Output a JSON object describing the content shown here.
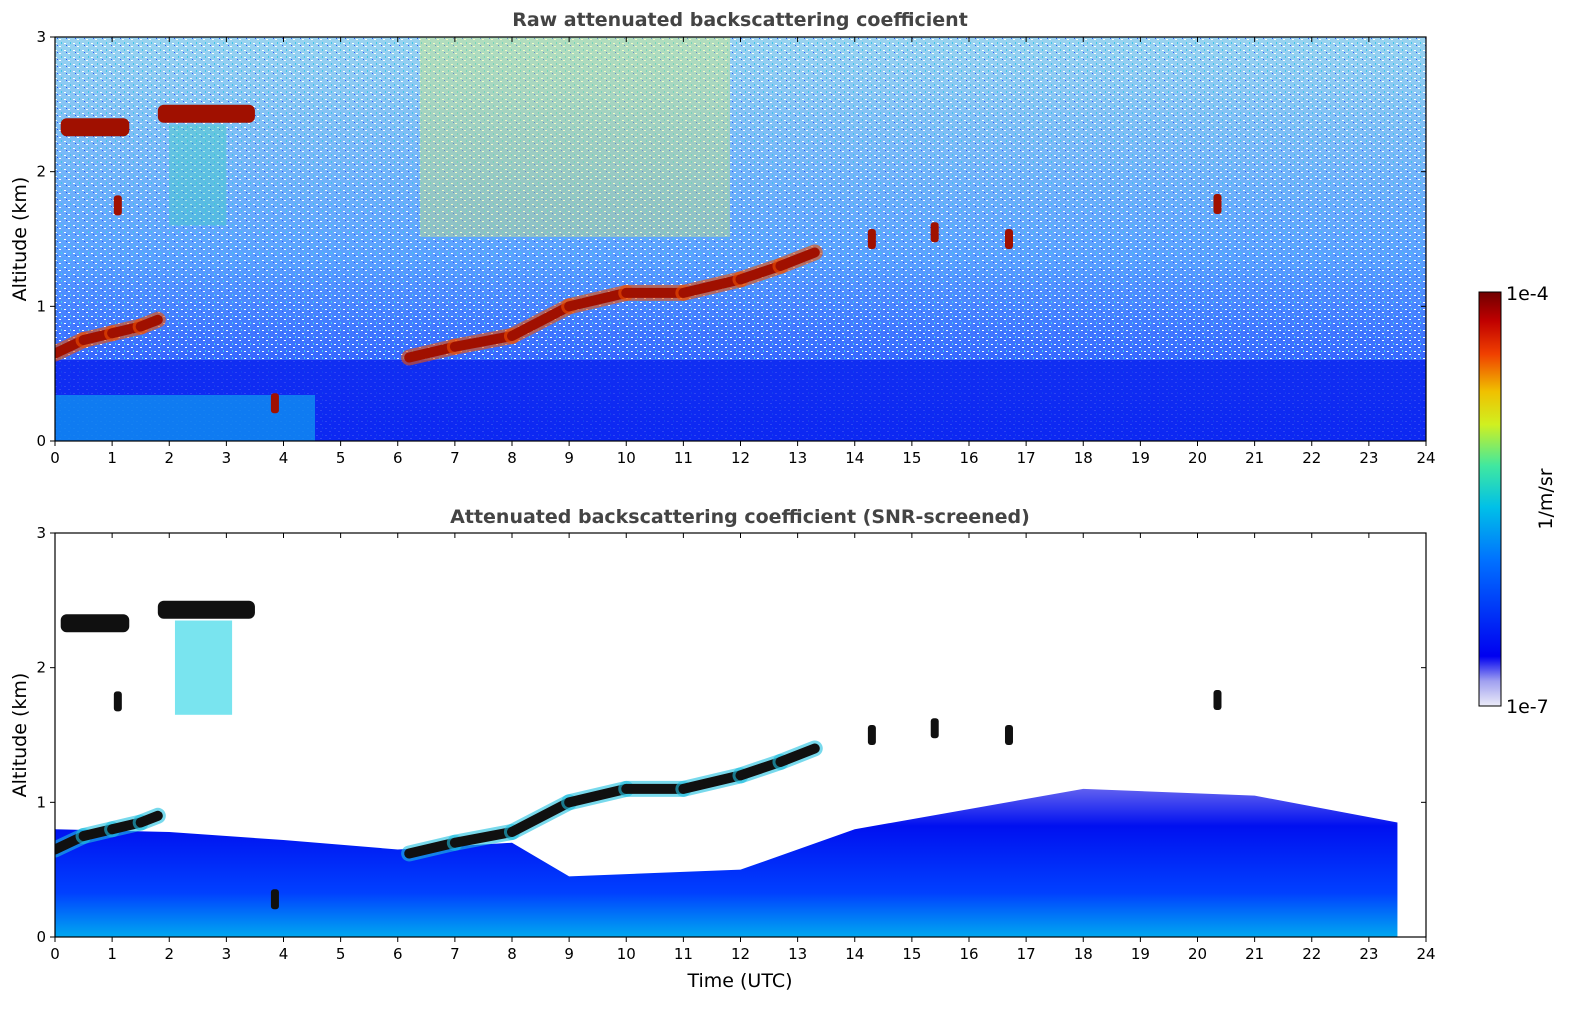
{
  "chart_data": [
    {
      "type": "heatmap",
      "title": "Raw attenuated backscattering coefficient",
      "xlabel": "",
      "ylabel": "Altitude (km)",
      "xlim": [
        0,
        24
      ],
      "ylim": [
        0,
        3
      ],
      "x_ticks": [
        "0",
        "1",
        "2",
        "3",
        "4",
        "5",
        "6",
        "7",
        "8",
        "9",
        "10",
        "11",
        "12",
        "13",
        "14",
        "15",
        "16",
        "17",
        "18",
        "19",
        "20",
        "21",
        "22",
        "23",
        "24"
      ],
      "y_ticks": [
        "0",
        "1",
        "2",
        "3"
      ],
      "cloud_layer": [
        {
          "time": 0.0,
          "altitude_km": 0.65
        },
        {
          "time": 0.5,
          "altitude_km": 0.75
        },
        {
          "time": 1.0,
          "altitude_km": 0.8
        },
        {
          "time": 1.5,
          "altitude_km": 0.85
        },
        {
          "time": 1.8,
          "altitude_km": 0.9
        },
        {
          "time": 6.2,
          "altitude_km": 0.62
        },
        {
          "time": 7.0,
          "altitude_km": 0.7
        },
        {
          "time": 8.0,
          "altitude_km": 0.78
        },
        {
          "time": 9.0,
          "altitude_km": 1.0
        },
        {
          "time": 10.0,
          "altitude_km": 1.1
        },
        {
          "time": 11.0,
          "altitude_km": 1.1
        },
        {
          "time": 12.0,
          "altitude_km": 1.2
        },
        {
          "time": 12.7,
          "altitude_km": 1.3
        },
        {
          "time": 13.3,
          "altitude_km": 1.4
        }
      ],
      "upper_cloud": [
        {
          "t_start": 0.1,
          "t_end": 1.3,
          "altitude_km": 2.33
        },
        {
          "t_start": 1.8,
          "t_end": 3.5,
          "altitude_km": 2.43
        }
      ],
      "scattered_cells": [
        {
          "time": 1.1,
          "altitude_km": 1.75
        },
        {
          "time": 3.85,
          "altitude_km": 0.28
        },
        {
          "time": 14.3,
          "altitude_km": 1.5
        },
        {
          "time": 15.4,
          "altitude_km": 1.55
        },
        {
          "time": 16.7,
          "altitude_km": 1.5
        },
        {
          "time": 20.35,
          "altitude_km": 1.76
        }
      ]
    },
    {
      "type": "heatmap",
      "title": "Attenuated backscattering coefficient (SNR-screened)",
      "xlabel": "Time (UTC)",
      "ylabel": "Altitude (km)",
      "xlim": [
        0,
        24
      ],
      "ylim": [
        0,
        3
      ],
      "x_ticks": [
        "0",
        "1",
        "2",
        "3",
        "4",
        "5",
        "6",
        "7",
        "8",
        "9",
        "10",
        "11",
        "12",
        "13",
        "14",
        "15",
        "16",
        "17",
        "18",
        "19",
        "20",
        "21",
        "22",
        "23",
        "24"
      ],
      "y_ticks": [
        "0",
        "1",
        "2",
        "3"
      ],
      "boundary_layer_top": [
        {
          "time": 0,
          "altitude_km": 0.8
        },
        {
          "time": 2,
          "altitude_km": 0.78
        },
        {
          "time": 4,
          "altitude_km": 0.72
        },
        {
          "time": 6,
          "altitude_km": 0.65
        },
        {
          "time": 8,
          "altitude_km": 0.7
        },
        {
          "time": 9,
          "altitude_km": 0.45
        },
        {
          "time": 12,
          "altitude_km": 0.5
        },
        {
          "time": 14,
          "altitude_km": 0.8
        },
        {
          "time": 18,
          "altitude_km": 1.1
        },
        {
          "time": 21,
          "altitude_km": 1.05
        },
        {
          "time": 23.5,
          "altitude_km": 0.85
        }
      ]
    }
  ],
  "colorbar": {
    "label": "1/m/sr",
    "max_label": "1e-4",
    "min_label": "1e-7",
    "scale": "log",
    "colormap": [
      "#e6e6f5",
      "#0000f0",
      "#0055ff",
      "#00b4f0",
      "#30e0c0",
      "#c8f030",
      "#f0d000",
      "#f05000",
      "#c00000",
      "#800000"
    ]
  }
}
